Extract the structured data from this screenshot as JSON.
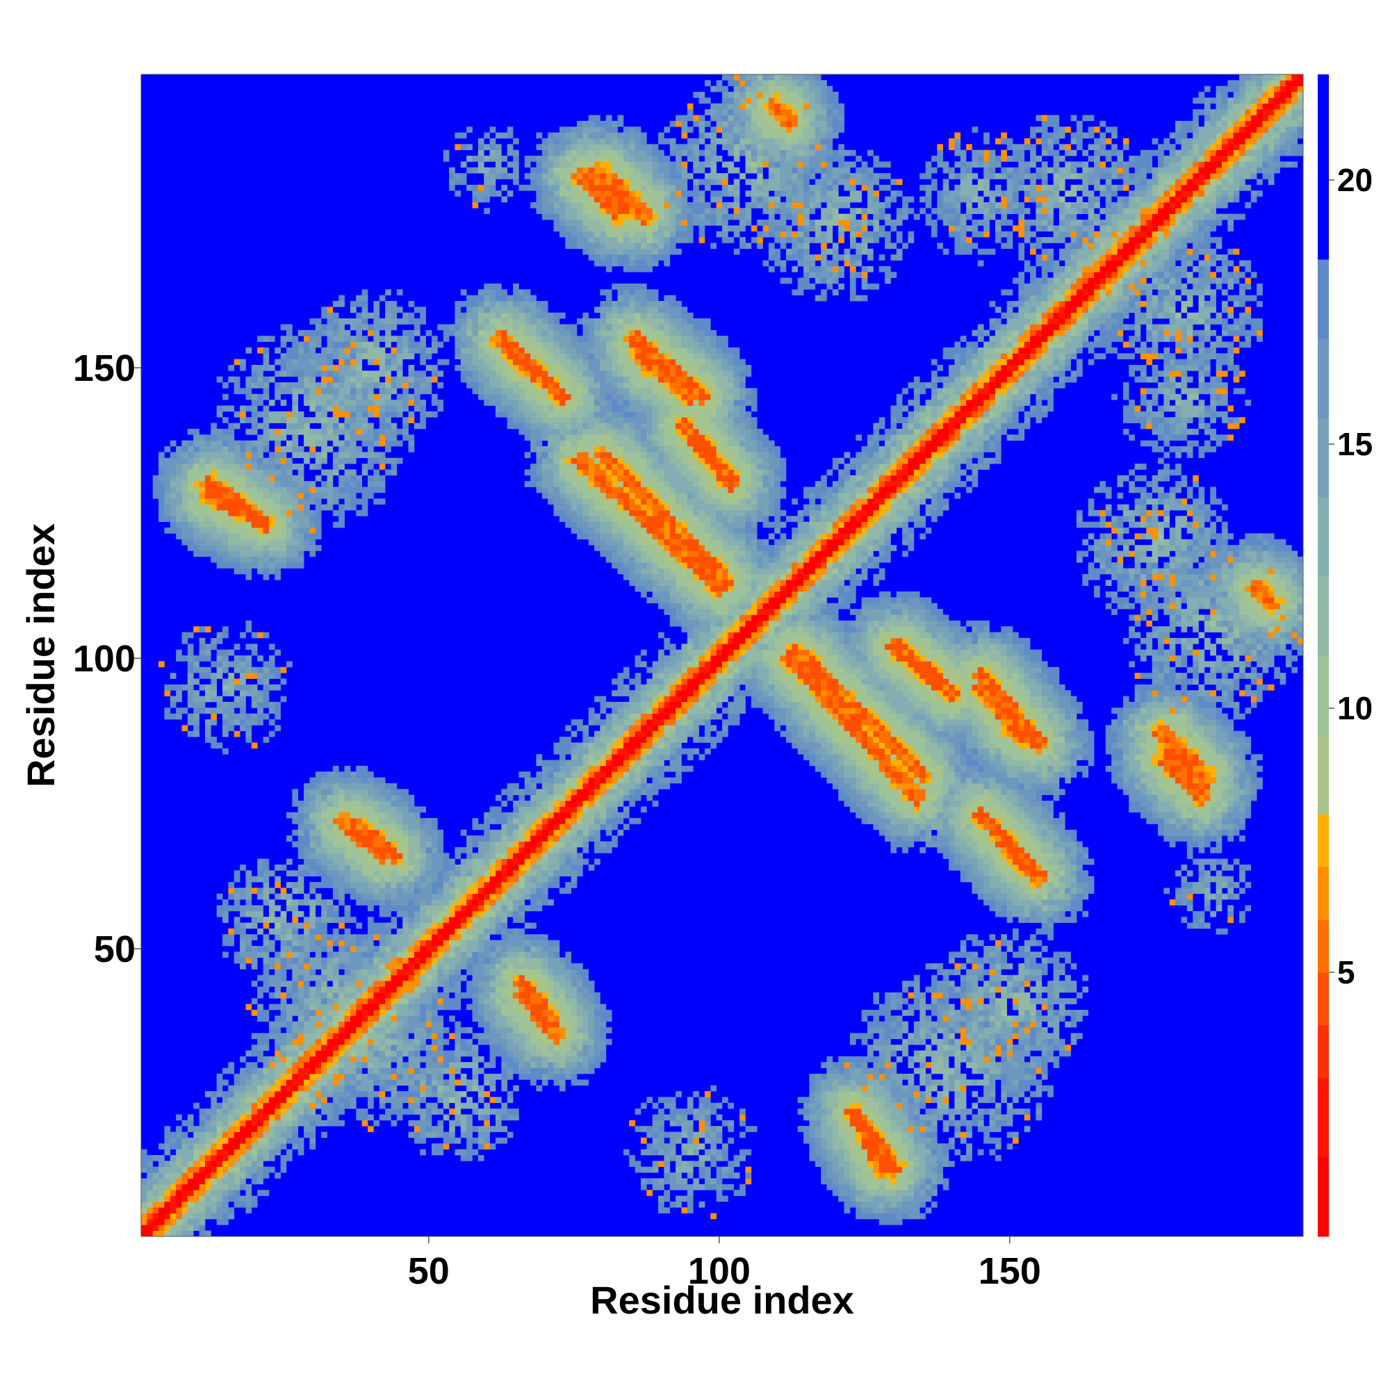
{
  "chart_data": {
    "type": "heatmap",
    "title": "",
    "xlabel": "Residue index",
    "ylabel": "Residue index",
    "n_residues": 200,
    "xlim": [
      1,
      200
    ],
    "ylim": [
      1,
      200
    ],
    "x_ticks": [
      50,
      100,
      150
    ],
    "y_ticks": [
      50,
      100,
      150
    ],
    "colorbar": {
      "ticks": [
        5,
        10,
        15,
        20
      ],
      "range": [
        0,
        22
      ],
      "palette": [
        "#ff0000",
        "#ff1500",
        "#ff3000",
        "#ff5000",
        "#ff7000",
        "#ff9000",
        "#ffb000",
        "#a8c488",
        "#9ec29a",
        "#92b8a6",
        "#84aeb2",
        "#78a2b8",
        "#6d97bf",
        "#5f8bc6",
        "#0000ff"
      ],
      "palette_thresholds": [
        1.5,
        3,
        4,
        5,
        6,
        7,
        8,
        9.5,
        11,
        12.5,
        14,
        15.5,
        17,
        18.5
      ]
    },
    "contact_features": [
      {
        "kind": "diagonal",
        "x0": 1,
        "y0": 1,
        "x1": 200,
        "y1": 200,
        "value": 1,
        "width": 2
      },
      {
        "kind": "band",
        "x0": 65,
        "y0": 152,
        "x1": 73,
        "y1": 145,
        "value": 6
      },
      {
        "kind": "band",
        "x0": 85,
        "y0": 155,
        "x1": 97,
        "y1": 145,
        "value": 6
      },
      {
        "kind": "band",
        "x0": 76,
        "y0": 134,
        "x1": 100,
        "y1": 112,
        "value": 6
      },
      {
        "kind": "band",
        "x0": 94,
        "y0": 140,
        "x1": 102,
        "y1": 130,
        "value": 6
      },
      {
        "kind": "band",
        "x0": 76,
        "y0": 183,
        "x1": 83,
        "y1": 176,
        "value": 6
      },
      {
        "kind": "band",
        "x0": 113,
        "y0": 101,
        "x1": 135,
        "y1": 80,
        "value": 6
      },
      {
        "kind": "band",
        "x0": 130,
        "y0": 102,
        "x1": 140,
        "y1": 94,
        "value": 6
      },
      {
        "kind": "band",
        "x0": 145,
        "y0": 95,
        "x1": 152,
        "y1": 86,
        "value": 6
      },
      {
        "kind": "band",
        "x0": 146,
        "y0": 72,
        "x1": 155,
        "y1": 62,
        "value": 6
      },
      {
        "kind": "band",
        "x0": 176,
        "y0": 87,
        "x1": 184,
        "y1": 79,
        "value": 6
      },
      {
        "kind": "band",
        "x0": 35,
        "y0": 72,
        "x1": 42,
        "y1": 66,
        "value": 6
      },
      {
        "kind": "band",
        "x0": 66,
        "y0": 44,
        "x1": 71,
        "y1": 37,
        "value": 6
      },
      {
        "kind": "band",
        "x0": 12,
        "y0": 128,
        "x1": 20,
        "y1": 124,
        "value": 6
      },
      {
        "kind": "band",
        "x0": 123,
        "y0": 22,
        "x1": 130,
        "y1": 12,
        "value": 6
      },
      {
        "kind": "band",
        "x0": 109,
        "y0": 195,
        "x1": 112,
        "y1": 192,
        "value": 6
      },
      {
        "kind": "blob",
        "cx": 120,
        "cy": 175,
        "r": 14,
        "value": 12
      },
      {
        "kind": "blob",
        "cx": 160,
        "cy": 180,
        "r": 14,
        "value": 12
      },
      {
        "kind": "blob",
        "cx": 185,
        "cy": 105,
        "r": 16,
        "value": 12
      },
      {
        "kind": "blob",
        "cx": 40,
        "cy": 35,
        "r": 16,
        "value": 12
      },
      {
        "kind": "blob",
        "cx": 30,
        "cy": 140,
        "r": 18,
        "value": 12
      },
      {
        "kind": "blob",
        "cx": 150,
        "cy": 40,
        "r": 14,
        "value": 12
      },
      {
        "kind": "blob",
        "cx": 180,
        "cy": 145,
        "r": 12,
        "value": 13
      },
      {
        "kind": "blob",
        "cx": 95,
        "cy": 15,
        "r": 12,
        "value": 13
      },
      {
        "kind": "blob",
        "cx": 25,
        "cy": 55,
        "r": 12,
        "value": 12
      },
      {
        "kind": "blob",
        "cx": 185,
        "cy": 60,
        "r": 8,
        "value": 13
      }
    ]
  }
}
